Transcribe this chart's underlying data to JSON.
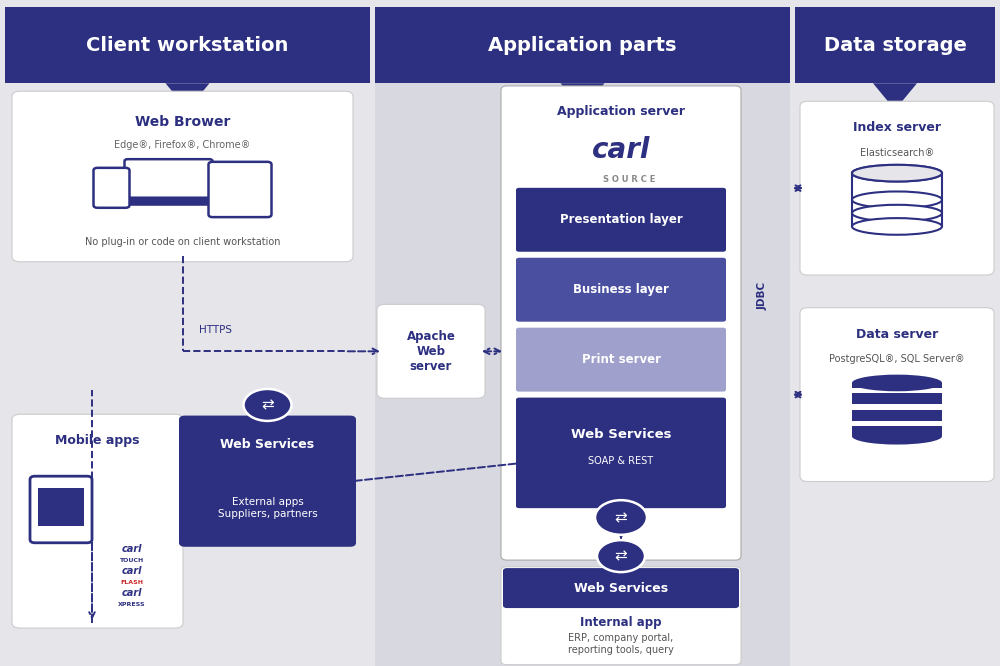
{
  "bg_color": "#e5e5ea",
  "header_color": "#2d3080",
  "dark_blue": "#2d3080",
  "medium_blue": "#4a4fa0",
  "lighter_purple": "#a0a0cc",
  "arrow_color": "#2d3080",
  "col2_bg": "#d8d8e0",
  "header_titles": [
    "Client workstation",
    "Application parts",
    "Data storage"
  ],
  "header_title_fontsize": 14
}
